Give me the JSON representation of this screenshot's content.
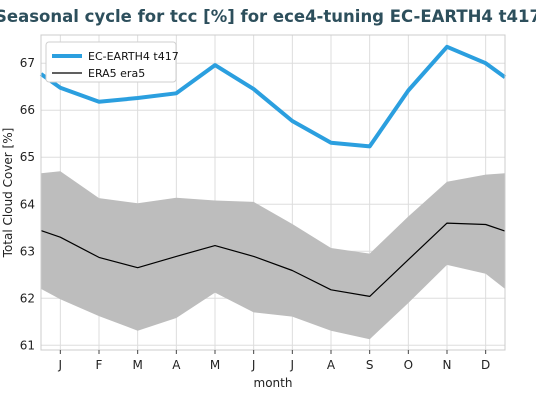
{
  "chart_data": {
    "type": "line",
    "title": "Seasonal cycle for tcc [%] for ece4-tuning EC-EARTH4 t417",
    "xlabel": "month",
    "ylabel": "Total Cloud Cover [%]",
    "categories": [
      "J",
      "F",
      "M",
      "A",
      "M",
      "J",
      "J",
      "A",
      "S",
      "O",
      "N",
      "D"
    ],
    "y_ticks": [
      61,
      62,
      63,
      64,
      65,
      66,
      67
    ],
    "ylim": [
      60.9,
      67.6
    ],
    "grid": true,
    "legend_position": "top-left",
    "series": [
      {
        "name": "EC-EARTH4 t417",
        "color": "#2b9fdf",
        "values": [
          66.48,
          66.18,
          66.26,
          66.36,
          66.96,
          66.45,
          65.77,
          65.31,
          65.23,
          66.42,
          67.35,
          67.0
        ]
      },
      {
        "name": "ERA5 era5",
        "color": "#000000",
        "values": [
          63.3,
          62.87,
          62.65,
          62.89,
          63.12,
          62.89,
          62.59,
          62.18,
          62.04,
          62.82,
          63.6,
          63.57
        ]
      }
    ],
    "band": {
      "color": "#bdbdbd",
      "upper": [
        64.7,
        64.13,
        64.02,
        64.14,
        64.08,
        64.05,
        63.58,
        63.07,
        62.95,
        63.74,
        64.48,
        64.63
      ],
      "lower": [
        61.98,
        61.62,
        61.31,
        61.58,
        62.12,
        61.7,
        61.61,
        61.31,
        61.13,
        61.9,
        62.71,
        62.52
      ]
    },
    "edge_values": {
      "left": {
        "EC-EARTH4 t417": 66.77,
        "ERA5 era5": 63.44,
        "upper": 64.66,
        "lower": 62.2
      },
      "right": {
        "EC-EARTH4 t417": 66.7,
        "ERA5 era5": 63.43,
        "upper": 64.66,
        "lower": 62.2
      }
    }
  }
}
